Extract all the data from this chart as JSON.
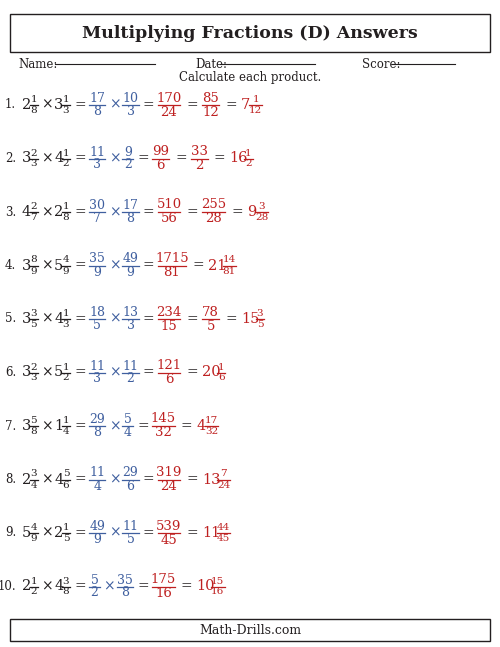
{
  "title": "Multiplying Fractions (D) Answers",
  "instructions": "Calculate each product.",
  "bg_color": "#ffffff",
  "black": "#231f20",
  "blue": "#3f5f9f",
  "red": "#be2020",
  "problems": [
    {
      "num": "1",
      "mixed1_whole": "2",
      "mixed1_num": "1",
      "mixed1_den": "8",
      "mixed2_whole": "3",
      "mixed2_num": "1",
      "mixed2_den": "3",
      "imp1_num": "17",
      "imp1_den": "8",
      "imp2_num": "10",
      "imp2_den": "3",
      "prod_num": "170",
      "prod_den": "24",
      "simp_num": "85",
      "simp_den": "12",
      "ans_whole": "7",
      "ans_num": "1",
      "ans_den": "12",
      "has_simp": true
    },
    {
      "num": "2",
      "mixed1_whole": "3",
      "mixed1_num": "2",
      "mixed1_den": "3",
      "mixed2_whole": "4",
      "mixed2_num": "1",
      "mixed2_den": "2",
      "imp1_num": "11",
      "imp1_den": "3",
      "imp2_num": "9",
      "imp2_den": "2",
      "prod_num": "99",
      "prod_den": "6",
      "simp_num": "33",
      "simp_den": "2",
      "ans_whole": "16",
      "ans_num": "1",
      "ans_den": "2",
      "has_simp": true
    },
    {
      "num": "3",
      "mixed1_whole": "4",
      "mixed1_num": "2",
      "mixed1_den": "7",
      "mixed2_whole": "2",
      "mixed2_num": "1",
      "mixed2_den": "8",
      "imp1_num": "30",
      "imp1_den": "7",
      "imp2_num": "17",
      "imp2_den": "8",
      "prod_num": "510",
      "prod_den": "56",
      "simp_num": "255",
      "simp_den": "28",
      "ans_whole": "9",
      "ans_num": "3",
      "ans_den": "28",
      "has_simp": true
    },
    {
      "num": "4",
      "mixed1_whole": "3",
      "mixed1_num": "8",
      "mixed1_den": "9",
      "mixed2_whole": "5",
      "mixed2_num": "4",
      "mixed2_den": "9",
      "imp1_num": "35",
      "imp1_den": "9",
      "imp2_num": "49",
      "imp2_den": "9",
      "prod_num": "1715",
      "prod_den": "81",
      "simp_num": "",
      "simp_den": "",
      "ans_whole": "21",
      "ans_num": "14",
      "ans_den": "81",
      "has_simp": false
    },
    {
      "num": "5",
      "mixed1_whole": "3",
      "mixed1_num": "3",
      "mixed1_den": "5",
      "mixed2_whole": "4",
      "mixed2_num": "1",
      "mixed2_den": "3",
      "imp1_num": "18",
      "imp1_den": "5",
      "imp2_num": "13",
      "imp2_den": "3",
      "prod_num": "234",
      "prod_den": "15",
      "simp_num": "78",
      "simp_den": "5",
      "ans_whole": "15",
      "ans_num": "3",
      "ans_den": "5",
      "has_simp": true
    },
    {
      "num": "6",
      "mixed1_whole": "3",
      "mixed1_num": "2",
      "mixed1_den": "3",
      "mixed2_whole": "5",
      "mixed2_num": "1",
      "mixed2_den": "2",
      "imp1_num": "11",
      "imp1_den": "3",
      "imp2_num": "11",
      "imp2_den": "2",
      "prod_num": "121",
      "prod_den": "6",
      "simp_num": "",
      "simp_den": "",
      "ans_whole": "20",
      "ans_num": "1",
      "ans_den": "6",
      "has_simp": false
    },
    {
      "num": "7",
      "mixed1_whole": "3",
      "mixed1_num": "5",
      "mixed1_den": "8",
      "mixed2_whole": "1",
      "mixed2_num": "1",
      "mixed2_den": "4",
      "imp1_num": "29",
      "imp1_den": "8",
      "imp2_num": "5",
      "imp2_den": "4",
      "prod_num": "145",
      "prod_den": "32",
      "simp_num": "",
      "simp_den": "",
      "ans_whole": "4",
      "ans_num": "17",
      "ans_den": "32",
      "has_simp": false
    },
    {
      "num": "8",
      "mixed1_whole": "2",
      "mixed1_num": "3",
      "mixed1_den": "4",
      "mixed2_whole": "4",
      "mixed2_num": "5",
      "mixed2_den": "6",
      "imp1_num": "11",
      "imp1_den": "4",
      "imp2_num": "29",
      "imp2_den": "6",
      "prod_num": "319",
      "prod_den": "24",
      "simp_num": "",
      "simp_den": "",
      "ans_whole": "13",
      "ans_num": "7",
      "ans_den": "24",
      "has_simp": false
    },
    {
      "num": "9",
      "mixed1_whole": "5",
      "mixed1_num": "4",
      "mixed1_den": "9",
      "mixed2_whole": "2",
      "mixed2_num": "1",
      "mixed2_den": "5",
      "imp1_num": "49",
      "imp1_den": "9",
      "imp2_num": "11",
      "imp2_den": "5",
      "prod_num": "539",
      "prod_den": "45",
      "simp_num": "",
      "simp_den": "",
      "ans_whole": "11",
      "ans_num": "44",
      "ans_den": "45",
      "has_simp": false
    },
    {
      "num": "10",
      "mixed1_whole": "2",
      "mixed1_num": "1",
      "mixed1_den": "2",
      "mixed2_whole": "4",
      "mixed2_num": "3",
      "mixed2_den": "8",
      "imp1_num": "5",
      "imp1_den": "2",
      "imp2_num": "35",
      "imp2_den": "8",
      "prod_num": "175",
      "prod_den": "16",
      "simp_num": "",
      "simp_den": "",
      "ans_whole": "10",
      "ans_num": "15",
      "ans_den": "16",
      "has_simp": false
    }
  ],
  "footer": "Math-Drills.com"
}
